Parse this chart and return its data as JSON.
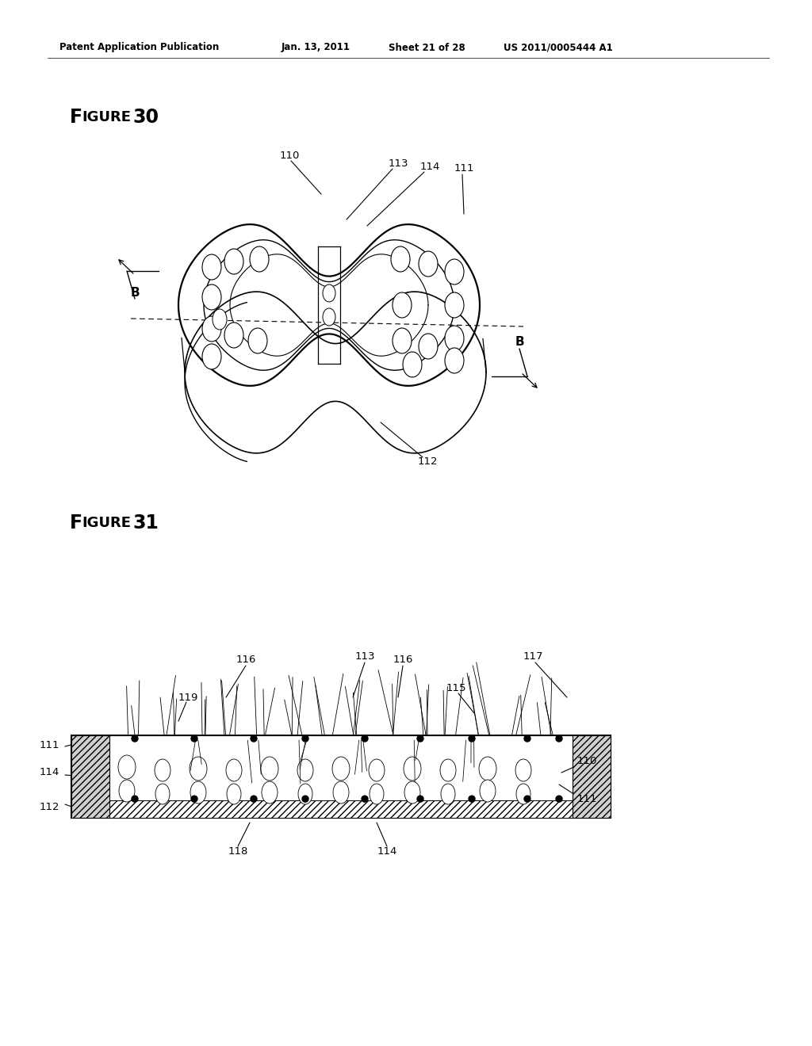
{
  "bg_color": "#ffffff",
  "header_text": "Patent Application Publication",
  "header_date": "Jan. 13, 2011",
  "header_sheet": "Sheet 21 of 28",
  "header_patent": "US 2011/0005444 A1",
  "fig30_title": "Figure 30",
  "fig31_title": "Figure 31"
}
